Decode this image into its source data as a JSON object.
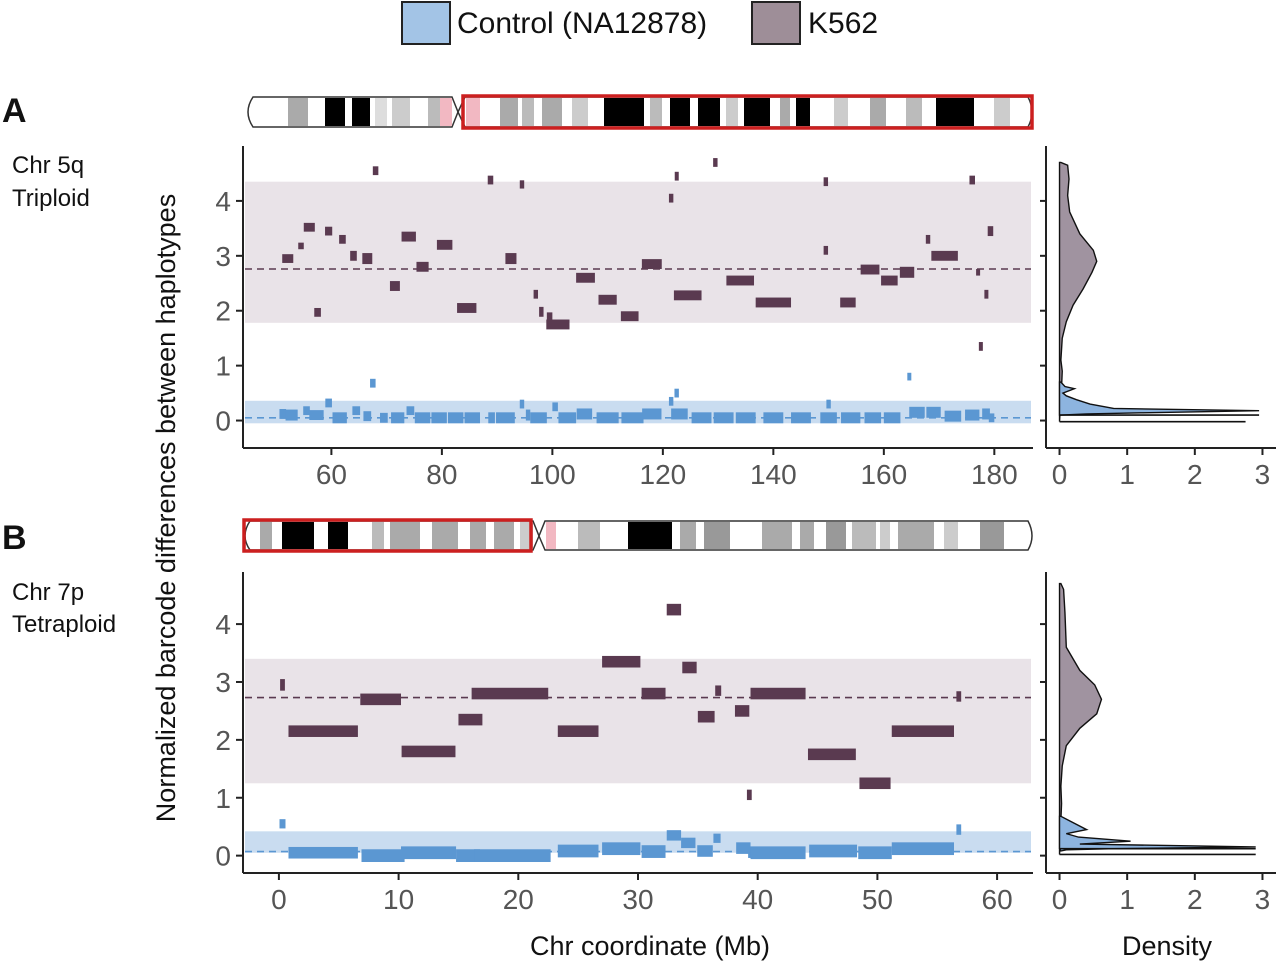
{
  "colors": {
    "control_fill": "#5b97d2",
    "control_band": "#c9dcf0",
    "control_legend": "#a3c4e6",
    "k562_fill": "#5a3a50",
    "k562_band": "#e9e3e8",
    "k562_legend": "#9e8e98",
    "k562_density": "#a093a0",
    "control_density": "#8db4df",
    "highlight": "#cc1f1f",
    "axis": "#222222",
    "tick_text": "#555555"
  },
  "legend": {
    "control": "Control (NA12878)",
    "k562": "K562"
  },
  "shared": {
    "ylabel": "Normalized barcode differences between haplotypes",
    "xlabel": "Chr coordinate (Mb)",
    "density_xlabel": "Density",
    "density_ticks": [
      "0",
      "1",
      "2",
      "3"
    ]
  },
  "panels": [
    {
      "id": "A",
      "letter": "A",
      "chr_label": "Chr 5q",
      "ploidy_label": "Triploid"
    },
    {
      "id": "B",
      "letter": "B",
      "chr_label": "Chr 7p",
      "ploidy_label": "Tetraploid"
    }
  ],
  "chart_data": [
    {
      "type": "scatter",
      "panel": "A",
      "xlim": [
        44,
        187
      ],
      "ylim": [
        -0.5,
        5
      ],
      "x_ticks": [
        60,
        80,
        100,
        120,
        140,
        160,
        180
      ],
      "y_ticks": [
        0,
        1,
        2,
        3,
        4
      ],
      "k562_band": [
        1.78,
        4.35
      ],
      "k562_mean": 2.76,
      "control_band": [
        -0.05,
        0.36
      ],
      "control_mean": 0.05,
      "series": [
        {
          "name": "K562",
          "segments": [
            [
              52.1,
              2.95,
              2,
              0.16
            ],
            [
              54.5,
              3.18,
              1,
              0.12
            ],
            [
              56,
              3.52,
              2,
              0.16
            ],
            [
              57.5,
              1.97,
              1.2,
              0.16
            ],
            [
              59.5,
              3.45,
              1.3,
              0.16
            ],
            [
              62,
              3.3,
              1.2,
              0.16
            ],
            [
              64,
              3,
              1.2,
              0.18
            ],
            [
              66.5,
              2.95,
              1.8,
              0.2
            ],
            [
              68,
              4.55,
              1,
              0.16
            ],
            [
              71.5,
              2.45,
              1.8,
              0.18
            ],
            [
              74,
              3.35,
              2.6,
              0.18
            ],
            [
              76.5,
              2.8,
              2.2,
              0.18
            ],
            [
              80.5,
              3.2,
              2.8,
              0.18
            ],
            [
              84.5,
              2.05,
              3.5,
              0.18
            ],
            [
              88.8,
              4.38,
              1,
              0.16
            ],
            [
              92.5,
              2.95,
              2,
              0.2
            ],
            [
              94.5,
              4.3,
              0.8,
              0.15
            ],
            [
              97,
              2.3,
              0.8,
              0.16
            ],
            [
              98,
              1.98,
              0.8,
              0.18
            ],
            [
              99.5,
              1.88,
              1,
              0.18
            ],
            [
              101,
              1.75,
              4.2,
              0.18
            ],
            [
              106,
              2.6,
              3.4,
              0.18
            ],
            [
              110,
              2.2,
              3.3,
              0.18
            ],
            [
              114,
              1.9,
              3.2,
              0.18
            ],
            [
              118,
              2.85,
              3.6,
              0.18
            ],
            [
              121.5,
              4.05,
              0.8,
              0.16
            ],
            [
              122.5,
              4.45,
              0.7,
              0.16
            ],
            [
              124.5,
              2.28,
              5,
              0.18
            ],
            [
              129.5,
              4.7,
              0.8,
              0.16
            ],
            [
              134,
              2.55,
              5,
              0.18
            ],
            [
              140,
              2.15,
              6.4,
              0.18
            ],
            [
              149.5,
              4.35,
              0.8,
              0.16
            ],
            [
              149.5,
              3.1,
              0.8,
              0.16
            ],
            [
              153.5,
              2.15,
              2.8,
              0.18
            ],
            [
              157.5,
              2.75,
              3.4,
              0.18
            ],
            [
              161,
              2.55,
              3,
              0.18
            ],
            [
              164.2,
              2.7,
              2.6,
              0.2
            ],
            [
              168,
              3.3,
              0.8,
              0.16
            ],
            [
              171,
              3,
              4.8,
              0.18
            ],
            [
              176,
              4.38,
              1,
              0.16
            ],
            [
              177,
              2.7,
              0.6,
              0.12
            ],
            [
              177.5,
              1.35,
              0.6,
              0.16
            ],
            [
              178.5,
              2.3,
              0.6,
              0.16
            ],
            [
              179.3,
              3.45,
              1,
              0.18
            ]
          ]
        },
        {
          "name": "Control (NA12878)",
          "segments": [
            [
              51.2,
              0.12,
              1.2,
              0.18
            ],
            [
              52.8,
              0.1,
              2.2,
              0.2
            ],
            [
              55.5,
              0.18,
              1.2,
              0.16
            ],
            [
              57.3,
              0.1,
              2.6,
              0.18
            ],
            [
              59.5,
              0.32,
              1.2,
              0.16
            ],
            [
              61.5,
              0.05,
              2.6,
              0.2
            ],
            [
              64.5,
              0.18,
              1.4,
              0.16
            ],
            [
              66.5,
              0.08,
              1.4,
              0.18
            ],
            [
              67.5,
              0.68,
              1,
              0.16
            ],
            [
              69.5,
              0.05,
              1.4,
              0.18
            ],
            [
              72,
              0.05,
              2.4,
              0.2
            ],
            [
              74.3,
              0.18,
              1.4,
              0.16
            ],
            [
              76.5,
              0.05,
              2.8,
              0.2
            ],
            [
              79.5,
              0.05,
              2.8,
              0.2
            ],
            [
              82.5,
              0.05,
              2.8,
              0.2
            ],
            [
              85.5,
              0.05,
              2.8,
              0.2
            ],
            [
              89,
              0.05,
              1.2,
              0.2
            ],
            [
              91.5,
              0.05,
              3.4,
              0.2
            ],
            [
              94.5,
              0.3,
              0.8,
              0.16
            ],
            [
              95.6,
              0.1,
              0.8,
              0.2
            ],
            [
              97.5,
              0.05,
              3,
              0.2
            ],
            [
              100.5,
              0.25,
              1,
              0.16
            ],
            [
              102.7,
              0.05,
              3.2,
              0.2
            ],
            [
              105.8,
              0.12,
              2.8,
              0.2
            ],
            [
              110,
              0.05,
              4,
              0.2
            ],
            [
              114.5,
              0.05,
              4,
              0.2
            ],
            [
              118,
              0.12,
              3.5,
              0.2
            ],
            [
              121.5,
              0.35,
              0.8,
              0.16
            ],
            [
              122.5,
              0.5,
              0.8,
              0.16
            ],
            [
              123,
              0.12,
              3,
              0.2
            ],
            [
              127,
              0.05,
              3.6,
              0.2
            ],
            [
              131,
              0.05,
              3.6,
              0.2
            ],
            [
              135,
              0.05,
              3.6,
              0.2
            ],
            [
              140,
              0.05,
              3.6,
              0.2
            ],
            [
              145,
              0.05,
              3.6,
              0.2
            ],
            [
              150,
              0.3,
              0.8,
              0.16
            ],
            [
              150,
              0.05,
              3,
              0.2
            ],
            [
              154,
              0.05,
              3.5,
              0.2
            ],
            [
              158,
              0.05,
              3,
              0.2
            ],
            [
              161.5,
              0.05,
              3,
              0.2
            ],
            [
              164.5,
              0.8,
              0.5,
              0.14
            ],
            [
              166,
              0.15,
              2.8,
              0.2
            ],
            [
              169,
              0.15,
              2.6,
              0.2
            ],
            [
              172.5,
              0.08,
              3,
              0.2
            ],
            [
              176,
              0.1,
              2.6,
              0.2
            ],
            [
              178.5,
              0.12,
              1.4,
              0.2
            ],
            [
              179.5,
              0.05,
              1,
              0.16
            ]
          ]
        }
      ],
      "k562_density_curve": [
        [
          0.02,
          4.7
        ],
        [
          0.12,
          4.65
        ],
        [
          0.14,
          4.4
        ],
        [
          0.12,
          4.1
        ],
        [
          0.15,
          3.8
        ],
        [
          0.3,
          3.4
        ],
        [
          0.5,
          3.1
        ],
        [
          0.55,
          2.9
        ],
        [
          0.48,
          2.7
        ],
        [
          0.35,
          2.4
        ],
        [
          0.2,
          2.1
        ],
        [
          0.1,
          1.8
        ],
        [
          0.04,
          1.5
        ],
        [
          0.02,
          1.1
        ],
        [
          0.04,
          0.9
        ],
        [
          0.03,
          0.6
        ],
        [
          0.02,
          0.45
        ]
      ],
      "control_density_curve": [
        [
          0.02,
          0.7
        ],
        [
          0.08,
          0.62
        ],
        [
          0.22,
          0.58
        ],
        [
          0.05,
          0.5
        ],
        [
          0.1,
          0.45
        ],
        [
          0.25,
          0.38
        ],
        [
          0.45,
          0.3
        ],
        [
          0.8,
          0.22
        ],
        [
          2.95,
          0.18
        ],
        [
          1.2,
          0.14
        ],
        [
          0.4,
          0.12
        ],
        [
          0.02,
          0.1
        ]
      ],
      "density_baselines": [
        {
          "name": "K562",
          "y": -0.02,
          "peak": 2.75
        },
        {
          "name": "Control (NA12878)",
          "y": 0.1,
          "peak": 2.95
        }
      ]
    },
    {
      "type": "scatter",
      "panel": "B",
      "xlim": [
        -3,
        63
      ],
      "ylim": [
        -0.3,
        4.9
      ],
      "x_ticks": [
        0,
        10,
        20,
        30,
        40,
        50,
        60
      ],
      "y_ticks": [
        0,
        1,
        2,
        3,
        4
      ],
      "k562_band": [
        1.25,
        3.4
      ],
      "k562_mean": 2.73,
      "control_band": [
        0.05,
        0.42
      ],
      "control_mean": 0.07,
      "series": [
        {
          "name": "K562",
          "segments": [
            [
              0.3,
              2.95,
              0.4,
              0.2
            ],
            [
              3.7,
              2.15,
              5.8,
              0.2
            ],
            [
              8.5,
              2.7,
              3.4,
              0.2
            ],
            [
              12.5,
              1.8,
              4.5,
              0.2
            ],
            [
              16,
              2.35,
              2,
              0.2
            ],
            [
              19.3,
              2.8,
              6.4,
              0.2
            ],
            [
              25,
              2.15,
              3.4,
              0.2
            ],
            [
              28.6,
              3.35,
              3.2,
              0.2
            ],
            [
              31.3,
              2.8,
              2,
              0.2
            ],
            [
              33,
              4.25,
              1.2,
              0.2
            ],
            [
              34.3,
              3.25,
              1.2,
              0.2
            ],
            [
              35.7,
              2.4,
              1.4,
              0.2
            ],
            [
              36.7,
              2.85,
              0.5,
              0.18
            ],
            [
              38.7,
              2.5,
              1.2,
              0.2
            ],
            [
              39.3,
              1.05,
              0.4,
              0.18
            ],
            [
              41.7,
              2.8,
              4.6,
              0.2
            ],
            [
              46.2,
              1.75,
              4,
              0.2
            ],
            [
              49.8,
              1.25,
              2.6,
              0.2
            ],
            [
              53.8,
              2.15,
              5.2,
              0.2
            ],
            [
              56.8,
              2.75,
              0.4,
              0.18
            ]
          ]
        },
        {
          "name": "Control (NA12878)",
          "segments": [
            [
              0.3,
              0.55,
              0.5,
              0.16
            ],
            [
              3.7,
              0.05,
              5.8,
              0.2
            ],
            [
              8.7,
              0,
              3.6,
              0.22
            ],
            [
              12.5,
              0.05,
              4.6,
              0.22
            ],
            [
              15.8,
              0,
              2,
              0.22
            ],
            [
              19.5,
              0,
              6.4,
              0.22
            ],
            [
              25,
              0.08,
              3.4,
              0.22
            ],
            [
              28.6,
              0.12,
              3.2,
              0.22
            ],
            [
              31.3,
              0.07,
              2,
              0.22
            ],
            [
              33,
              0.35,
              1.2,
              0.18
            ],
            [
              34.2,
              0.22,
              1.2,
              0.18
            ],
            [
              35.6,
              0.08,
              1.3,
              0.2
            ],
            [
              36.6,
              0.3,
              0.6,
              0.16
            ],
            [
              38.8,
              0.13,
              1.2,
              0.2
            ],
            [
              39.4,
              0.05,
              0.4,
              0.18
            ],
            [
              41.7,
              0.05,
              4.6,
              0.22
            ],
            [
              46.3,
              0.08,
              4,
              0.22
            ],
            [
              49.8,
              0.05,
              2.8,
              0.22
            ],
            [
              53.8,
              0.12,
              5.2,
              0.22
            ],
            [
              56.8,
              0.45,
              0.4,
              0.18
            ]
          ]
        }
      ],
      "k562_density_curve": [
        [
          0.02,
          4.7
        ],
        [
          0.06,
          4.6
        ],
        [
          0.08,
          4.2
        ],
        [
          0.1,
          3.6
        ],
        [
          0.3,
          3.2
        ],
        [
          0.52,
          2.95
        ],
        [
          0.62,
          2.7
        ],
        [
          0.55,
          2.45
        ],
        [
          0.3,
          2.2
        ],
        [
          0.1,
          1.9
        ],
        [
          0.04,
          1.55
        ],
        [
          0.02,
          1.2
        ],
        [
          0.03,
          0.9
        ]
      ],
      "control_density_curve": [
        [
          0.02,
          0.68
        ],
        [
          0.15,
          0.6
        ],
        [
          0.4,
          0.45
        ],
        [
          0.1,
          0.38
        ],
        [
          0.28,
          0.32
        ],
        [
          1.05,
          0.25
        ],
        [
          0.3,
          0.2
        ],
        [
          2.9,
          0.15
        ],
        [
          0.8,
          0.12
        ],
        [
          0.1,
          0.1
        ],
        [
          0.02,
          0.08
        ]
      ],
      "density_baselines": [
        {
          "name": "K562",
          "y": 0.02,
          "peak": 2.9
        },
        {
          "name": "Control (NA12878)",
          "y": 0.12,
          "peak": 2.9
        }
      ]
    }
  ]
}
